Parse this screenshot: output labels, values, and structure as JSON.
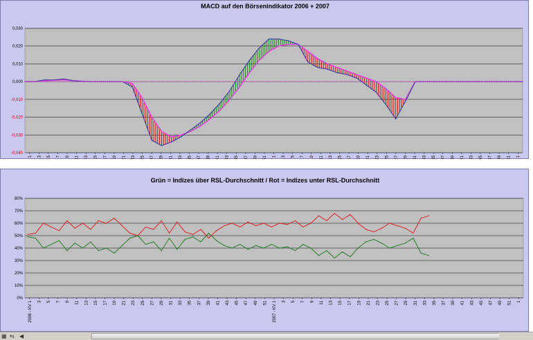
{
  "chart_data": [
    {
      "type": "area",
      "title": "MACD auf den Börsenindikator 2006 + 2007",
      "ylim": [
        -0.04,
        0.03
      ],
      "yticks": [
        "0,030",
        "0,020",
        "0,010",
        "0,000",
        "-0,010",
        "-0,020",
        "-0,030",
        "-0,040"
      ],
      "grid": true,
      "xtick_labels": [
        "2006 - KV 1",
        "3",
        "5",
        "7",
        "9",
        "11",
        "13",
        "15",
        "17",
        "19",
        "21",
        "23",
        "25",
        "27",
        "29",
        "31",
        "33",
        "35",
        "37",
        "39",
        "41",
        "43",
        "45",
        "47",
        "49",
        "51",
        "2007 - KV 1",
        "3",
        "5",
        "7",
        "9",
        "11",
        "13",
        "15",
        "17",
        "19",
        "21",
        "23",
        "25",
        "27",
        "29",
        "31",
        "33",
        "35",
        "37",
        "39",
        "41",
        "43",
        "45",
        "47",
        "49",
        "51",
        "1"
      ],
      "colors": {
        "macd": "#3030a0",
        "signal": "#e040e0",
        "positive": "#008000",
        "negative": "#d00000",
        "baseline": "#e040e0"
      },
      "series": [
        {
          "values": [
            0,
            0,
            0.001,
            0.001,
            0.0015,
            0.0005,
            0,
            0,
            0,
            0,
            0,
            -0.003,
            -0.018,
            -0.033,
            -0.036,
            -0.034,
            -0.031,
            -0.027,
            -0.023,
            -0.018,
            -0.012,
            -0.005,
            0.004,
            0.012,
            0.019,
            0.024,
            0.024,
            0.023,
            0.021,
            0.011,
            0.008,
            0.007,
            0.005,
            0.004,
            0.002,
            -0.002,
            -0.006,
            -0.013,
            -0.021,
            -0.011,
            0,
            0,
            0,
            0,
            0,
            0,
            0,
            0,
            0,
            0,
            0,
            0
          ]
        },
        {
          "values": [
            0,
            0,
            0.0005,
            0.0008,
            0.001,
            0.0006,
            0.0002,
            0,
            0,
            0,
            0,
            -0.001,
            -0.009,
            -0.02,
            -0.028,
            -0.031,
            -0.03,
            -0.028,
            -0.025,
            -0.021,
            -0.016,
            -0.01,
            -0.003,
            0.005,
            0.012,
            0.017,
            0.02,
            0.021,
            0.021,
            0.017,
            0.013,
            0.01,
            0.008,
            0.006,
            0.004,
            0.002,
            0,
            -0.004,
            -0.009,
            -0.01,
            0,
            0,
            0,
            0,
            0,
            0,
            0,
            0,
            0,
            0,
            0,
            0
          ]
        }
      ]
    },
    {
      "type": "line",
      "title": "Grün = Indizes über RSL-Durchschnitt / Rot = Indizes unter RSL-Durchschnitt",
      "ylim": [
        0,
        80
      ],
      "yticks": [
        "80%",
        "70%",
        "60%",
        "50%",
        "40%",
        "30%",
        "20%",
        "10%",
        "0%"
      ],
      "grid": true,
      "xtick_labels": [
        "2006 - KV 1",
        "3",
        "5",
        "7",
        "9",
        "11",
        "13",
        "15",
        "17",
        "19",
        "21",
        "23",
        "25",
        "27",
        "29",
        "31",
        "33",
        "35",
        "37",
        "39",
        "41",
        "43",
        "45",
        "47",
        "49",
        "51",
        "2007 - KV 1",
        "3",
        "5",
        "7",
        "9",
        "11",
        "13",
        "15",
        "17",
        "19",
        "21",
        "23",
        "25",
        "27",
        "29",
        "31",
        "33",
        "35",
        "37",
        "39",
        "41",
        "43",
        "45",
        "47",
        "49",
        "51",
        "1"
      ],
      "colors": {
        "red": "#e02020",
        "green": "#208020"
      },
      "series": [
        {
          "values": [
            51,
            52,
            60,
            57,
            54,
            62,
            56,
            60,
            55,
            62,
            60,
            64,
            58,
            52,
            50,
            57,
            55,
            62,
            52,
            61,
            53,
            51,
            55,
            48,
            54,
            58,
            60,
            57,
            61,
            58,
            60,
            57,
            60,
            59,
            62,
            57,
            60,
            66,
            62,
            68,
            63,
            67,
            60,
            55,
            53,
            56,
            60,
            58,
            56,
            52,
            64,
            66
          ]
        },
        {
          "values": [
            49,
            48,
            40,
            43,
            46,
            38,
            44,
            40,
            45,
            38,
            40,
            36,
            42,
            48,
            50,
            43,
            45,
            38,
            48,
            39,
            47,
            49,
            45,
            52,
            46,
            42,
            40,
            43,
            39,
            42,
            40,
            43,
            40,
            41,
            38,
            43,
            40,
            34,
            38,
            32,
            37,
            33,
            40,
            45,
            47,
            44,
            40,
            42,
            44,
            48,
            36,
            34
          ]
        }
      ]
    }
  ],
  "statusbar": {
    "icons": [
      "sheet-icon",
      "navigate-icon",
      "scroll-left-icon"
    ]
  }
}
